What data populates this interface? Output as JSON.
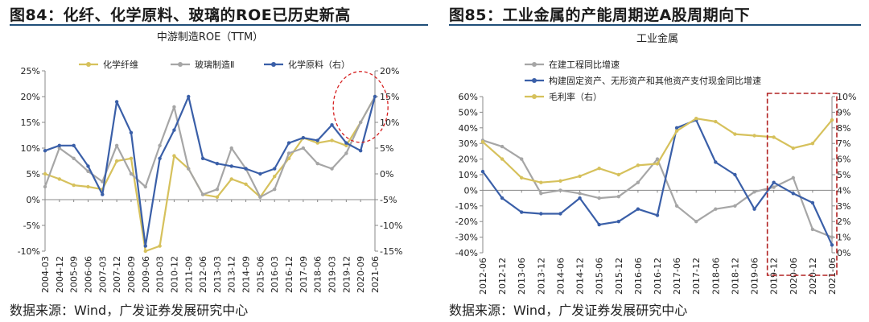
{
  "left": {
    "figure_title": "图84：化纤、化学原料、玻璃的ROE已历史新高",
    "source": "数据来源：Wind，广发证券发展研究中心"
  },
  "right": {
    "figure_title": "图85：工业金属的产能周期逆A股周期向下",
    "source": "数据来源：Wind，广发证券发展研究中心"
  },
  "colors": {
    "gold": "#D6C15C",
    "gray": "#A6A6A6",
    "blue": "#3A5FA8",
    "highlight_red": "#D62020",
    "box_red": "#B22222",
    "rule": "#1f4e79"
  },
  "chart_data": [
    {
      "type": "line",
      "title": "中游制造ROE（TTM）",
      "categories": [
        "2004-03",
        "2004-12",
        "2005-09",
        "2006-06",
        "2007-03",
        "2007-12",
        "2008-09",
        "2009-06",
        "2010-03",
        "2010-12",
        "2011-09",
        "2012-06",
        "2013-03",
        "2013-12",
        "2014-09",
        "2015-06",
        "2016-03",
        "2016-12",
        "2017-09",
        "2018-06",
        "2019-03",
        "2019-12",
        "2020-09",
        "2021-06"
      ],
      "ylim_left": [
        -10,
        25
      ],
      "ylim_right": [
        -15,
        20
      ],
      "yticks_left": [
        "-10%",
        "-5%",
        "0%",
        "5%",
        "10%",
        "15%",
        "20%",
        "25%"
      ],
      "yticks_right": [
        "-15%",
        "-10%",
        "-5%",
        "0%",
        "5%",
        "10%",
        "15%",
        "20%"
      ],
      "series": [
        {
          "name": "化学纤维",
          "color": "gold",
          "axis": "left",
          "values": [
            5.0,
            4.0,
            2.8,
            2.5,
            2.0,
            7.5,
            8.0,
            -10.0,
            -9.0,
            8.5,
            6.0,
            1.0,
            0.5,
            4.0,
            3.0,
            0.5,
            4.5,
            8.0,
            12.0,
            11.0,
            11.5,
            10.5,
            15.0,
            20.0
          ]
        },
        {
          "name": "玻璃制造Ⅱ",
          "color": "gray",
          "axis": "left",
          "values": [
            2.5,
            10.0,
            8.0,
            5.5,
            3.5,
            10.5,
            5.0,
            2.5,
            10.5,
            18.0,
            6.0,
            1.0,
            2.0,
            10.0,
            6.0,
            0.5,
            2.0,
            9.0,
            10.0,
            7.0,
            6.0,
            9.0,
            15.0,
            20.0
          ]
        },
        {
          "name": "化学原料（右）",
          "color": "blue",
          "axis": "right",
          "values": [
            4.5,
            5.5,
            5.5,
            1.5,
            -4.0,
            14.0,
            8.0,
            -14.0,
            3.0,
            8.5,
            15.0,
            3.0,
            2.0,
            1.5,
            1.0,
            0.0,
            1.0,
            6.0,
            7.0,
            6.5,
            9.5,
            6.0,
            4.5,
            15.0
          ]
        }
      ],
      "legend": [
        "化学纤维",
        "玻璃制造Ⅱ",
        "化学原料（右）"
      ]
    },
    {
      "type": "line",
      "title": "工业金属",
      "categories": [
        "2012-06",
        "2012-12",
        "2013-06",
        "2013-12",
        "2014-06",
        "2014-12",
        "2015-06",
        "2015-12",
        "2016-06",
        "2016-12",
        "2017-06",
        "2017-12",
        "2018-06",
        "2018-12",
        "2019-06",
        "2019-12",
        "2020-06",
        "2020-12",
        "2021-06"
      ],
      "ylim_left": [
        -40,
        60
      ],
      "ylim_right": [
        0,
        10
      ],
      "yticks_left": [
        "-40%",
        "-30%",
        "-20%",
        "-10%",
        "0%",
        "10%",
        "20%",
        "30%",
        "40%",
        "50%",
        "60%"
      ],
      "yticks_right": [
        "0%",
        "1%",
        "2%",
        "3%",
        "4%",
        "5%",
        "6%",
        "7%",
        "8%",
        "9%",
        "10%"
      ],
      "series": [
        {
          "name": "在建工程同比增速",
          "color": "gray",
          "axis": "left",
          "values": [
            32,
            28,
            20,
            -2,
            0,
            -2,
            -5,
            -4,
            5,
            20,
            -10,
            -20,
            -12,
            -10,
            -1,
            2,
            8,
            -25,
            -30
          ]
        },
        {
          "name": "构建固定资产、无形资产和其他资产支付现金同比增速",
          "color": "blue",
          "axis": "left",
          "values": [
            12,
            -5,
            -14,
            -15,
            -15,
            -5,
            -22,
            -20,
            -12,
            -16,
            40,
            45,
            18,
            10,
            -12,
            5,
            -2,
            -8,
            -35
          ]
        },
        {
          "name": "毛利率（右）",
          "color": "gold",
          "axis": "right",
          "values": [
            7.1,
            6.0,
            4.8,
            4.5,
            4.6,
            4.9,
            5.4,
            5.0,
            5.6,
            5.7,
            7.8,
            8.6,
            8.4,
            7.6,
            7.5,
            7.4,
            6.7,
            7.0,
            8.5
          ]
        }
      ],
      "legend": [
        "在建工程同比增速",
        "构建固定资产、无形资产和其他资产支付现金同比增速",
        "毛利率（右）"
      ]
    }
  ]
}
